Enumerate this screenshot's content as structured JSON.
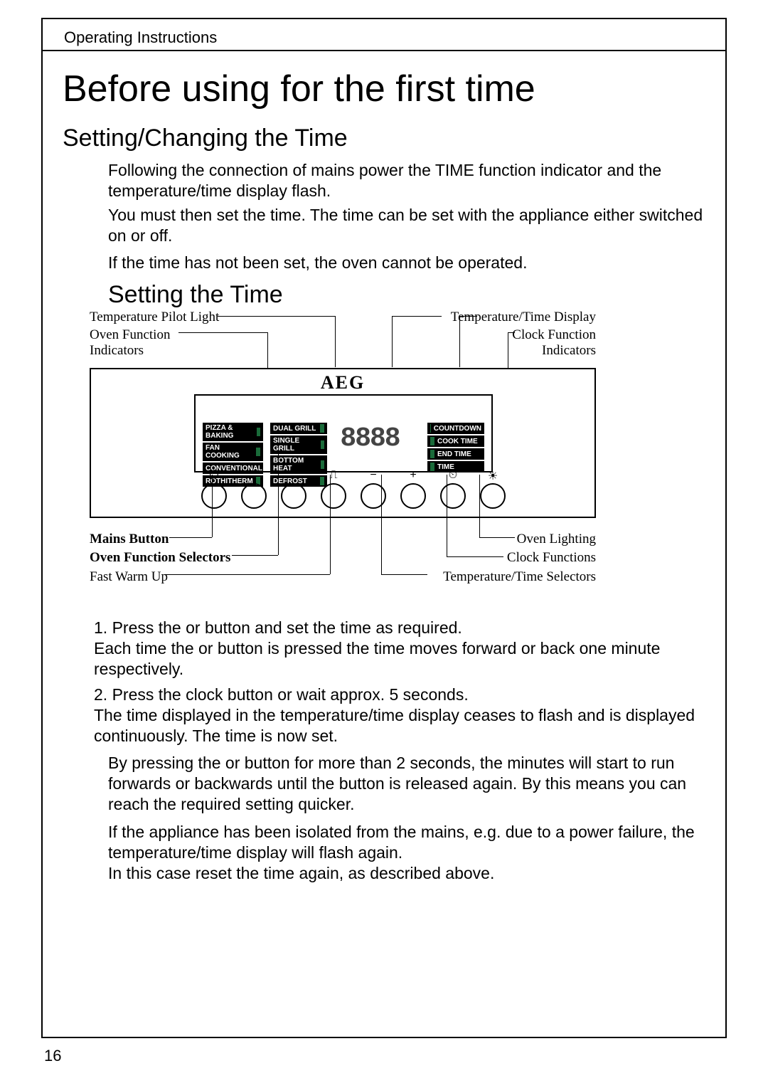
{
  "header": "Operating Instructions",
  "main_title": "Before using for the first time",
  "section1_title": "Setting/Changing the Time",
  "para1": "Following the connection of mains power the TIME function indicator and the temperature/time display flash.",
  "para2": "You must then set the time. The time can be set with the appliance either switched on or off.",
  "para3": "If the time has not been set, the oven cannot be operated.",
  "section2_title": "Setting the Time",
  "diagram": {
    "top_labels": {
      "temp_pilot_light": "Temperature Pilot Light",
      "oven_func_indicators": "Oven Function\nIndicators",
      "temp_time_display": "Temperature/Time Display",
      "clock_func_indicators": "Clock Function\nIndicators"
    },
    "brand": "AEG",
    "functions_left": [
      "PIZZA & BAKING",
      "FAN COOKING",
      "CONVENTIONAL",
      "ROTHITHERM"
    ],
    "functions_mid": [
      "DUAL GRILL",
      "SINGLE GRILL",
      "BOTTOM HEAT",
      "DEFROST"
    ],
    "functions_right": [
      "COUNTDOWN",
      "COOK TIME",
      "END TIME",
      "TIME"
    ],
    "display": "8888",
    "button_icons": [
      "⏻",
      "⌄",
      "⌃",
      "⎍",
      "−",
      "+",
      "⏲",
      "☀"
    ],
    "bottom_labels": {
      "mains_button": "Mains Button",
      "oven_func_selectors": "Oven Function Selectors",
      "fast_warm_up": "Fast Warm Up",
      "oven_lighting": "Oven Lighting",
      "clock_functions": "Clock Functions",
      "temp_time_selectors": "Temperature/Time Selectors"
    },
    "colors": {
      "panel_bg": "#ffffff",
      "border": "#000000",
      "func_bg": "#000000",
      "func_text": "#ffffff",
      "tick_color": "#1a6b3a"
    }
  },
  "step1": "1. Press the   or     button and set the time as required.\nEach time the   or     button is pressed the time moves forward or back one minute respectively.",
  "step2": "2. Press the clock   button or wait approx. 5 seconds.\nThe time displayed in the temperature/time display ceases to flash and is displayed continuously. The time is now set.",
  "para4": "By pressing the   or     button for more than 2 seconds, the minutes will start to run forwards or backwards until the button is released again. By this means you can reach the required setting quicker.",
  "para5": "If the appliance has been isolated from the mains, e.g. due to a power failure, the temperature/time display will flash again.\nIn this case reset the time again, as described above.",
  "page_number": "16"
}
